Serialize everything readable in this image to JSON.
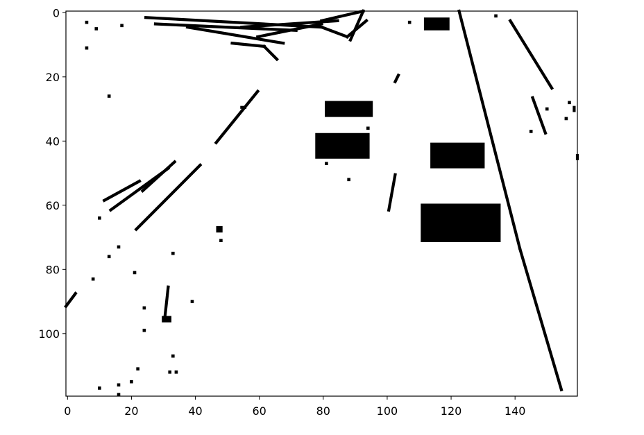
{
  "chart_data": {
    "type": "heatmap",
    "colormap": "binary",
    "image_shape": [
      120,
      160
    ],
    "xlim": [
      0,
      160
    ],
    "ylim": [
      120,
      0
    ],
    "y_axis_inverted": true,
    "x_ticks": [
      0,
      20,
      40,
      60,
      80,
      100,
      120,
      140
    ],
    "y_ticks": [
      0,
      20,
      40,
      60,
      80,
      100
    ],
    "grid": false,
    "colors": {
      "foreground": "#000000",
      "background": "#ffffff"
    },
    "strokes": [
      [
        [
          25,
          2
        ],
        [
          80,
          5
        ]
      ],
      [
        [
          28,
          4
        ],
        [
          72,
          6
        ]
      ],
      [
        [
          38,
          5
        ],
        [
          68,
          10
        ]
      ],
      [
        [
          55,
          5
        ],
        [
          85,
          3
        ]
      ],
      [
        [
          60,
          8
        ],
        [
          80,
          4
        ]
      ],
      [
        [
          80,
          3
        ],
        [
          93,
          0
        ]
      ],
      [
        [
          80,
          5
        ],
        [
          88,
          8
        ]
      ],
      [
        [
          88,
          8
        ],
        [
          94,
          3
        ]
      ],
      [
        [
          93,
          0
        ],
        [
          89,
          9
        ]
      ],
      [
        [
          52,
          10
        ],
        [
          62,
          11
        ]
      ],
      [
        [
          62,
          11
        ],
        [
          66,
          15
        ]
      ],
      [
        [
          60,
          25
        ],
        [
          47,
          41
        ]
      ],
      [
        [
          56,
          30
        ],
        [
          55,
          30
        ]
      ],
      [
        [
          42,
          48
        ],
        [
          22,
          68
        ]
      ],
      [
        [
          34,
          47
        ],
        [
          24,
          56
        ]
      ],
      [
        [
          32,
          49
        ],
        [
          14,
          62
        ]
      ],
      [
        [
          23,
          53
        ],
        [
          12,
          59
        ]
      ],
      [
        [
          103,
          51
        ],
        [
          101,
          62
        ]
      ],
      [
        [
          104,
          20
        ],
        [
          103,
          22
        ]
      ],
      [
        [
          123,
          0
        ],
        [
          142,
          74
        ]
      ],
      [
        [
          142,
          74
        ],
        [
          155,
          118
        ]
      ],
      [
        [
          139,
          3
        ],
        [
          152,
          24
        ]
      ],
      [
        [
          146,
          27
        ],
        [
          150,
          38
        ]
      ],
      [
        [
          32,
          86
        ],
        [
          31,
          95
        ]
      ],
      [
        [
          0,
          92
        ],
        [
          3,
          88
        ]
      ],
      [
        [
          159,
          30
        ],
        [
          159,
          31
        ]
      ],
      [
        [
          160,
          45
        ],
        [
          160,
          46
        ]
      ]
    ],
    "blobs": [
      [
        112,
        2,
        8,
        4
      ],
      [
        81,
        28,
        15,
        5
      ],
      [
        78,
        38,
        17,
        8
      ],
      [
        114,
        41,
        17,
        8
      ],
      [
        111,
        60,
        25,
        12
      ],
      [
        47,
        67,
        2,
        2
      ],
      [
        30,
        95,
        3,
        2
      ]
    ],
    "specks": [
      [
        6,
        3
      ],
      [
        6,
        11
      ],
      [
        9,
        5
      ],
      [
        17,
        4
      ],
      [
        13,
        26
      ],
      [
        10,
        64
      ],
      [
        8,
        83
      ],
      [
        13,
        76
      ],
      [
        16,
        73
      ],
      [
        21,
        81
      ],
      [
        24,
        92
      ],
      [
        24,
        99
      ],
      [
        20,
        115
      ],
      [
        22,
        111
      ],
      [
        10,
        117
      ],
      [
        16,
        116
      ],
      [
        16,
        119
      ],
      [
        33,
        75
      ],
      [
        39,
        90
      ],
      [
        33,
        107
      ],
      [
        32,
        112
      ],
      [
        34,
        112
      ],
      [
        48,
        71
      ],
      [
        81,
        47
      ],
      [
        88,
        52
      ],
      [
        94,
        36
      ],
      [
        107,
        3
      ],
      [
        134,
        1
      ],
      [
        150,
        30
      ],
      [
        157,
        28
      ],
      [
        156,
        33
      ],
      [
        145,
        37
      ]
    ]
  }
}
